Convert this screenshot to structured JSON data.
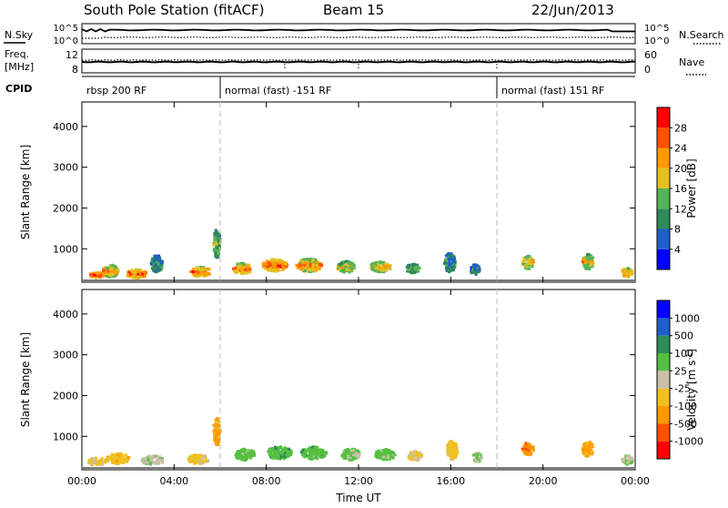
{
  "header": {
    "station": "South Pole Station (fitACF)",
    "beam": "Beam 15",
    "date": "22/Jun/2013"
  },
  "noise_panel": {
    "left_label": "N.Sky",
    "right_label": "N.Search",
    "left_ticks": [
      "10^5",
      "10^0"
    ],
    "right_ticks": [
      "10^5",
      "10^0"
    ]
  },
  "freq_panel": {
    "left_label_1": "Freq.",
    "left_label_2": "[MHz]",
    "right_label": "Nave",
    "left_ticks": [
      "12",
      "8"
    ],
    "right_ticks": [
      "60",
      "0"
    ]
  },
  "cpid_panel": {
    "label": "CPID",
    "segments": [
      {
        "text": "rbsp 200 RF",
        "start_hour": 0
      },
      {
        "text": "normal (fast) -151 RF",
        "start_hour": 6
      },
      {
        "text": "normal (fast) 151 RF",
        "start_hour": 18
      }
    ]
  },
  "chart_data": [
    {
      "type": "heatmap",
      "title": "",
      "xlabel": "Time UT",
      "ylabel": "Slant Range [km]",
      "x_ticks": [
        "00:00",
        "04:00",
        "08:00",
        "12:00",
        "16:00",
        "20:00",
        "00:00"
      ],
      "xlim_hours": [
        0,
        24
      ],
      "y_ticks": [
        "1000",
        "2000",
        "3000",
        "4000"
      ],
      "ylim": [
        180,
        4600
      ],
      "colorbar": {
        "label": "Power [dB]",
        "ticks": [
          "4",
          "8",
          "12",
          "16",
          "20",
          "24",
          "28"
        ],
        "range": [
          0,
          30
        ],
        "colors": [
          "#0000ff",
          "#1f5fc8",
          "#2e8b57",
          "#55b35a",
          "#e3c020",
          "#ff9a00",
          "#ff5000",
          "#ff0000"
        ]
      },
      "blobs": [
        {
          "t": 0.6,
          "r": 320,
          "dt": 0.7,
          "dr": 140,
          "v": 27
        },
        {
          "t": 1.2,
          "r": 420,
          "dt": 0.7,
          "dr": 300,
          "v": 20
        },
        {
          "t": 2.3,
          "r": 350,
          "dt": 0.9,
          "dr": 220,
          "v": 24
        },
        {
          "t": 3.2,
          "r": 600,
          "dt": 0.5,
          "dr": 420,
          "v": 10
        },
        {
          "t": 5.1,
          "r": 400,
          "dt": 0.9,
          "dr": 240,
          "v": 23
        },
        {
          "t": 5.8,
          "r": 1100,
          "dt": 0.3,
          "dr": 700,
          "v": 13
        },
        {
          "t": 6.9,
          "r": 480,
          "dt": 0.9,
          "dr": 260,
          "v": 22
        },
        {
          "t": 8.3,
          "r": 560,
          "dt": 1.1,
          "dr": 300,
          "v": 24
        },
        {
          "t": 9.8,
          "r": 560,
          "dt": 1.1,
          "dr": 320,
          "v": 21
        },
        {
          "t": 11.4,
          "r": 520,
          "dt": 0.8,
          "dr": 280,
          "v": 17
        },
        {
          "t": 12.9,
          "r": 520,
          "dt": 0.9,
          "dr": 260,
          "v": 19
        },
        {
          "t": 14.3,
          "r": 480,
          "dt": 0.6,
          "dr": 240,
          "v": 12
        },
        {
          "t": 15.9,
          "r": 620,
          "dt": 0.5,
          "dr": 480,
          "v": 10
        },
        {
          "t": 17.0,
          "r": 450,
          "dt": 0.4,
          "dr": 260,
          "v": 9
        },
        {
          "t": 19.3,
          "r": 640,
          "dt": 0.5,
          "dr": 340,
          "v": 19
        },
        {
          "t": 21.9,
          "r": 650,
          "dt": 0.5,
          "dr": 380,
          "v": 18
        },
        {
          "t": 23.6,
          "r": 380,
          "dt": 0.5,
          "dr": 220,
          "v": 22
        }
      ]
    },
    {
      "type": "heatmap",
      "title": "",
      "xlabel": "Time UT",
      "ylabel": "Slant Range [km]",
      "x_ticks": [
        "00:00",
        "04:00",
        "08:00",
        "12:00",
        "16:00",
        "20:00",
        "00:00"
      ],
      "xlim_hours": [
        0,
        24
      ],
      "y_ticks": [
        "1000",
        "2000",
        "3000",
        "4000"
      ],
      "ylim": [
        180,
        4600
      ],
      "colorbar": {
        "label": "Velocity [m s^-1]",
        "ticks": [
          "1000",
          "500",
          "100",
          "25",
          "-25",
          "-100",
          "-500",
          "-1000"
        ],
        "range": [
          -1200,
          1200
        ],
        "colors": [
          "#ff0000",
          "#ff5000",
          "#ff9a00",
          "#f0c020",
          "#c8c0a8",
          "#55c040",
          "#2e8b57",
          "#1f5fc8",
          "#0000ff"
        ]
      },
      "blobs": [
        {
          "t": 0.6,
          "r": 350,
          "dt": 0.8,
          "dr": 200,
          "v": -150
        },
        {
          "t": 1.5,
          "r": 420,
          "dt": 1.0,
          "dr": 260,
          "v": -300
        },
        {
          "t": 3.0,
          "r": 380,
          "dt": 1.0,
          "dr": 220,
          "v": 60
        },
        {
          "t": 5.0,
          "r": 400,
          "dt": 0.9,
          "dr": 240,
          "v": -200
        },
        {
          "t": 5.8,
          "r": 1100,
          "dt": 0.3,
          "dr": 700,
          "v": -450
        },
        {
          "t": 7.0,
          "r": 520,
          "dt": 0.9,
          "dr": 280,
          "v": 250
        },
        {
          "t": 8.5,
          "r": 560,
          "dt": 1.1,
          "dr": 300,
          "v": 300
        },
        {
          "t": 10.0,
          "r": 560,
          "dt": 1.1,
          "dr": 320,
          "v": 280
        },
        {
          "t": 11.6,
          "r": 520,
          "dt": 0.8,
          "dr": 280,
          "v": 200
        },
        {
          "t": 13.1,
          "r": 520,
          "dt": 0.9,
          "dr": 260,
          "v": 230
        },
        {
          "t": 14.4,
          "r": 480,
          "dt": 0.6,
          "dr": 240,
          "v": -180
        },
        {
          "t": 16.0,
          "r": 620,
          "dt": 0.5,
          "dr": 460,
          "v": -220
        },
        {
          "t": 17.1,
          "r": 450,
          "dt": 0.4,
          "dr": 240,
          "v": 150
        },
        {
          "t": 19.3,
          "r": 660,
          "dt": 0.5,
          "dr": 320,
          "v": -600
        },
        {
          "t": 21.9,
          "r": 650,
          "dt": 0.5,
          "dr": 380,
          "v": -450
        },
        {
          "t": 23.6,
          "r": 380,
          "dt": 0.5,
          "dr": 220,
          "v": 80
        }
      ]
    }
  ]
}
